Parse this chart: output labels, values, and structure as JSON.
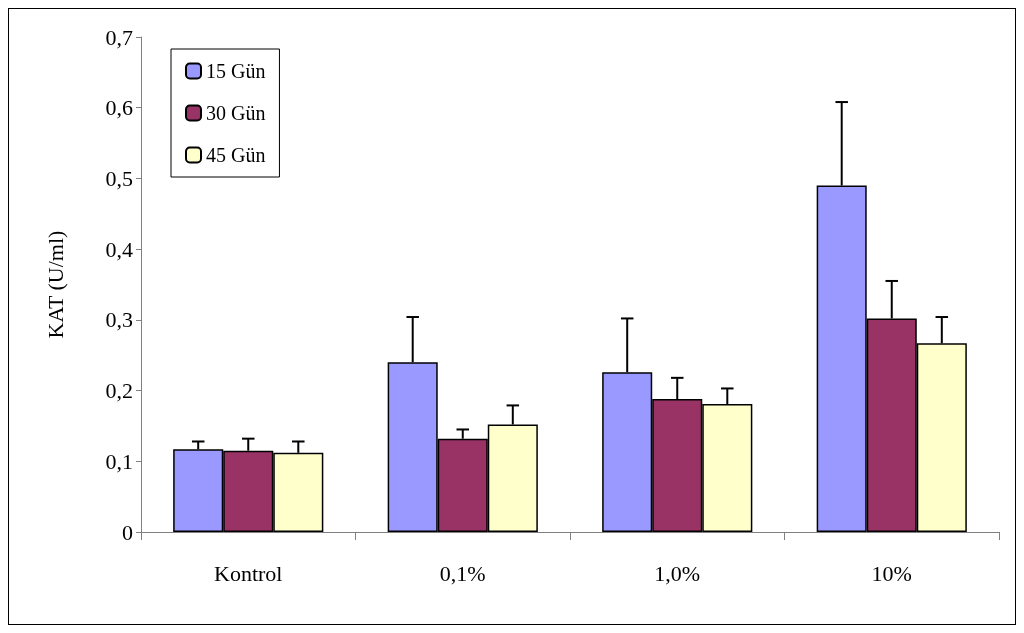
{
  "chart_data": {
    "type": "bar",
    "ylabel": "KAT (U/ml)",
    "categories": [
      "Kontrol",
      "0,1%",
      "1,0%",
      "10%"
    ],
    "series": [
      {
        "name": "15 Gün",
        "color": "#9999ff",
        "values": [
          0.117,
          0.24,
          0.226,
          0.49
        ],
        "errors": [
          [
            0.117,
            0.128
          ],
          [
            0.24,
            0.304
          ],
          [
            0.226,
            0.302
          ],
          [
            0.49,
            0.608
          ]
        ]
      },
      {
        "name": "30 Gün",
        "color": "#993366",
        "values": [
          0.115,
          0.132,
          0.188,
          0.302
        ],
        "errors": [
          [
            0.115,
            0.132
          ],
          [
            0.132,
            0.145
          ],
          [
            0.188,
            0.218
          ],
          [
            0.302,
            0.355
          ]
        ]
      },
      {
        "name": "45 Gün",
        "color": "#ffffcc",
        "values": [
          0.112,
          0.152,
          0.181,
          0.267
        ],
        "errors": [
          [
            0.112,
            0.128
          ],
          [
            0.152,
            0.179
          ],
          [
            0.181,
            0.203
          ],
          [
            0.267,
            0.304
          ]
        ]
      }
    ],
    "ylim": [
      0,
      0.7
    ],
    "yticks": [
      0,
      {
        "value": 0.1,
        "label": "0,1"
      },
      {
        "value": 0.2,
        "label": "0,2"
      },
      {
        "value": 0.3,
        "label": "0,3"
      },
      {
        "value": 0.4,
        "label": "0,4"
      },
      {
        "value": 0.5,
        "label": "0,5"
      },
      {
        "value": 0.6,
        "label": "0,6"
      },
      {
        "value": 0.7,
        "label": "0,7"
      }
    ],
    "grid": false,
    "legend": "top left"
  }
}
